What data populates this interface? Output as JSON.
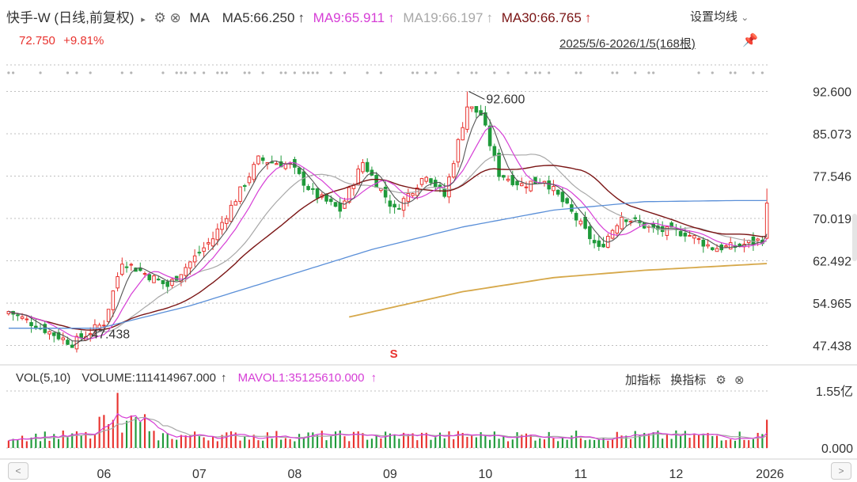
{
  "header": {
    "title": "快手-W (日线,前复权)",
    "ma_label": "MA",
    "ma5": "MA5:66.250",
    "ma9": "MA9:65.911",
    "ma19": "MA19:66.197",
    "ma30": "MA30:66.765",
    "settings_label": "设置均线",
    "price": "72.750",
    "change": "+9.81%",
    "date_range": "2025/5/6-2026/1/5(168根)"
  },
  "volume_header": {
    "vol_label": "VOL(5,10)",
    "volume": "VOLUME:111414967.000",
    "mavol1": "MAVOL1:35125610.000",
    "add_indicator": "加指标",
    "switch_indicator": "换指标"
  },
  "colors": {
    "up": "#e8322e",
    "down": "#1f9a3a",
    "ma5": "#555555",
    "ma9": "#d63ed6",
    "ma19": "#a8a8a8",
    "ma30": "#7a1414",
    "ma60": "#5a8fd8",
    "ma120": "#d6a84a",
    "grid": "#bfbfbf"
  },
  "chart_data": {
    "type": "candlestick",
    "y_ticks": [
      "92.600",
      "85.073",
      "77.546",
      "70.019",
      "62.492",
      "54.965",
      "47.438"
    ],
    "ylim": [
      44.5,
      95
    ],
    "x_ticks": [
      "06",
      "07",
      "08",
      "09",
      "10",
      "11",
      "12",
      "2026"
    ],
    "x_tick_days": [
      21,
      42,
      63,
      84,
      105,
      126,
      147,
      168
    ],
    "annotations": [
      {
        "label": "92.600",
        "day": 101,
        "value": 92.6
      },
      {
        "label": "47.438",
        "day": 14,
        "value": 47.438
      }
    ],
    "signal_label": "S",
    "signal_day": 85,
    "key_points": [
      {
        "day": 0,
        "close": 53.5
      },
      {
        "day": 14,
        "close": 47.8
      },
      {
        "day": 21,
        "close": 51.5
      },
      {
        "day": 25,
        "close": 62.5
      },
      {
        "day": 35,
        "close": 58
      },
      {
        "day": 45,
        "close": 66.5
      },
      {
        "day": 55,
        "close": 80.5
      },
      {
        "day": 62,
        "close": 79.5
      },
      {
        "day": 67,
        "close": 74.5
      },
      {
        "day": 73,
        "close": 71.5
      },
      {
        "day": 78,
        "close": 80
      },
      {
        "day": 85,
        "close": 71.5
      },
      {
        "day": 92,
        "close": 78
      },
      {
        "day": 96,
        "close": 74
      },
      {
        "day": 101,
        "close": 90
      },
      {
        "day": 104,
        "close": 88.5
      },
      {
        "day": 108,
        "close": 78
      },
      {
        "day": 113,
        "close": 76
      },
      {
        "day": 118,
        "close": 77
      },
      {
        "day": 124,
        "close": 71
      },
      {
        "day": 130,
        "close": 64.5
      },
      {
        "day": 135,
        "close": 70.5
      },
      {
        "day": 142,
        "close": 68
      },
      {
        "day": 149,
        "close": 67.5
      },
      {
        "day": 155,
        "close": 64.8
      },
      {
        "day": 160,
        "close": 65
      },
      {
        "day": 166,
        "close": 66.3
      },
      {
        "day": 167,
        "close": 72.75
      }
    ],
    "ma60_points": [
      [
        0,
        50.5
      ],
      [
        20,
        50.5
      ],
      [
        40,
        54.5
      ],
      [
        60,
        59.5
      ],
      [
        80,
        64.5
      ],
      [
        100,
        68.5
      ],
      [
        120,
        71.5
      ],
      [
        140,
        73
      ],
      [
        160,
        73.2
      ],
      [
        167,
        73.2
      ]
    ],
    "ma120_points": [
      [
        75,
        52.5
      ],
      [
        100,
        57
      ],
      [
        120,
        59.5
      ],
      [
        140,
        60.8
      ],
      [
        167,
        62
      ]
    ],
    "vol_ticks": [
      "1.55亿",
      "0.000"
    ],
    "vol_max": 155,
    "vol_last": 111.4
  }
}
